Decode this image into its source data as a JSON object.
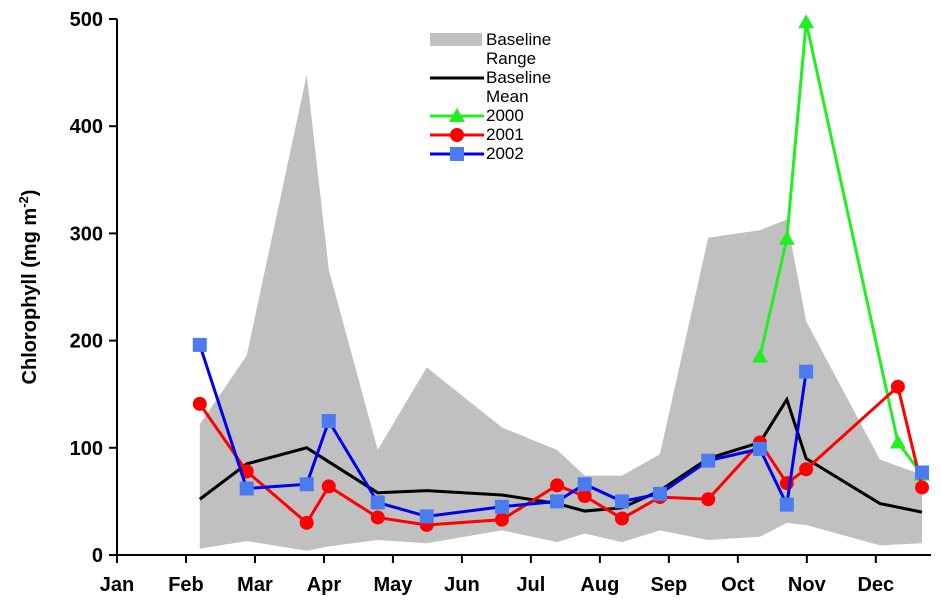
{
  "chart_data": {
    "type": "line",
    "ylabel": {
      "text": "Chlorophyll (mg m",
      "superscript": "-2",
      "suffix": ")"
    },
    "xlim": [
      1,
      12.8
    ],
    "ylim": [
      0,
      500
    ],
    "yticks": [
      0,
      100,
      200,
      300,
      400,
      500
    ],
    "xticks": [
      {
        "value": 1,
        "label": "Jan"
      },
      {
        "value": 2,
        "label": "Feb"
      },
      {
        "value": 3,
        "label": "Mar"
      },
      {
        "value": 4,
        "label": "Apr"
      },
      {
        "value": 5,
        "label": "May"
      },
      {
        "value": 6,
        "label": "Jun"
      },
      {
        "value": 7,
        "label": "Jul"
      },
      {
        "value": 8,
        "label": "Aug"
      },
      {
        "value": 9,
        "label": "Sep"
      },
      {
        "value": 10,
        "label": "Oct"
      },
      {
        "value": 11,
        "label": "Nov"
      },
      {
        "value": 12,
        "label": "Dec"
      }
    ],
    "grid": false,
    "legend": "top",
    "series": [
      {
        "name": "Baseline Range",
        "type": "area",
        "color": "#c0c0c0",
        "x": [
          2.2,
          2.88,
          3.75,
          4.07,
          4.78,
          5.49,
          6.58,
          7.38,
          7.78,
          8.32,
          8.87,
          9.57,
          10.32,
          10.71,
          10.99,
          12.06,
          12.67
        ],
        "high": [
          122,
          186,
          448,
          266,
          98,
          175,
          119,
          98,
          74,
          74,
          94,
          296,
          303,
          313,
          218,
          89,
          75
        ],
        "low": [
          6,
          13,
          4,
          8,
          14,
          11,
          23,
          12,
          20,
          12,
          23,
          14,
          17,
          30,
          28,
          9,
          11
        ]
      },
      {
        "name": "Baseline Mean",
        "type": "line",
        "color": "#000000",
        "x": [
          2.2,
          2.88,
          3.75,
          4.78,
          5.49,
          6.58,
          7.38,
          7.78,
          8.32,
          8.87,
          9.57,
          10.32,
          10.71,
          10.99,
          12.06,
          12.67
        ],
        "values": [
          52,
          85,
          100,
          58,
          60,
          56,
          48,
          41,
          44,
          60,
          90,
          105,
          145,
          90,
          48,
          40
        ]
      },
      {
        "name": "2000",
        "type": "line",
        "color": "#22ee22",
        "marker": "triangle",
        "x": [
          10.32,
          10.71,
          10.99,
          12.32,
          12.67
        ],
        "values": [
          185,
          295,
          497,
          105,
          75
        ]
      },
      {
        "name": "2001",
        "type": "line",
        "color": "#ff0000",
        "marker": "circle",
        "x": [
          2.2,
          2.88,
          3.75,
          4.07,
          4.78,
          5.49,
          6.58,
          7.38,
          7.78,
          8.32,
          8.87,
          9.57,
          10.32,
          10.71,
          10.99,
          12.32,
          12.67
        ],
        "values": [
          141,
          78,
          30,
          64,
          35,
          28,
          33,
          65,
          55,
          34,
          54,
          52,
          105,
          67,
          80,
          157,
          63
        ]
      },
      {
        "name": "2002",
        "type": "line",
        "color": "#0000ee",
        "markerColor": "#4a7cf0",
        "marker": "square",
        "x": [
          2.2,
          2.88,
          3.75,
          4.07,
          4.78,
          5.49,
          6.58,
          7.38,
          7.78,
          8.32,
          8.87,
          9.57,
          10.32,
          10.71,
          10.99,
          12.32,
          12.67
        ],
        "values": [
          196,
          62,
          66,
          125,
          49,
          36,
          45,
          50,
          66,
          50,
          57,
          88,
          99,
          47,
          171,
          null,
          77
        ]
      }
    ]
  }
}
